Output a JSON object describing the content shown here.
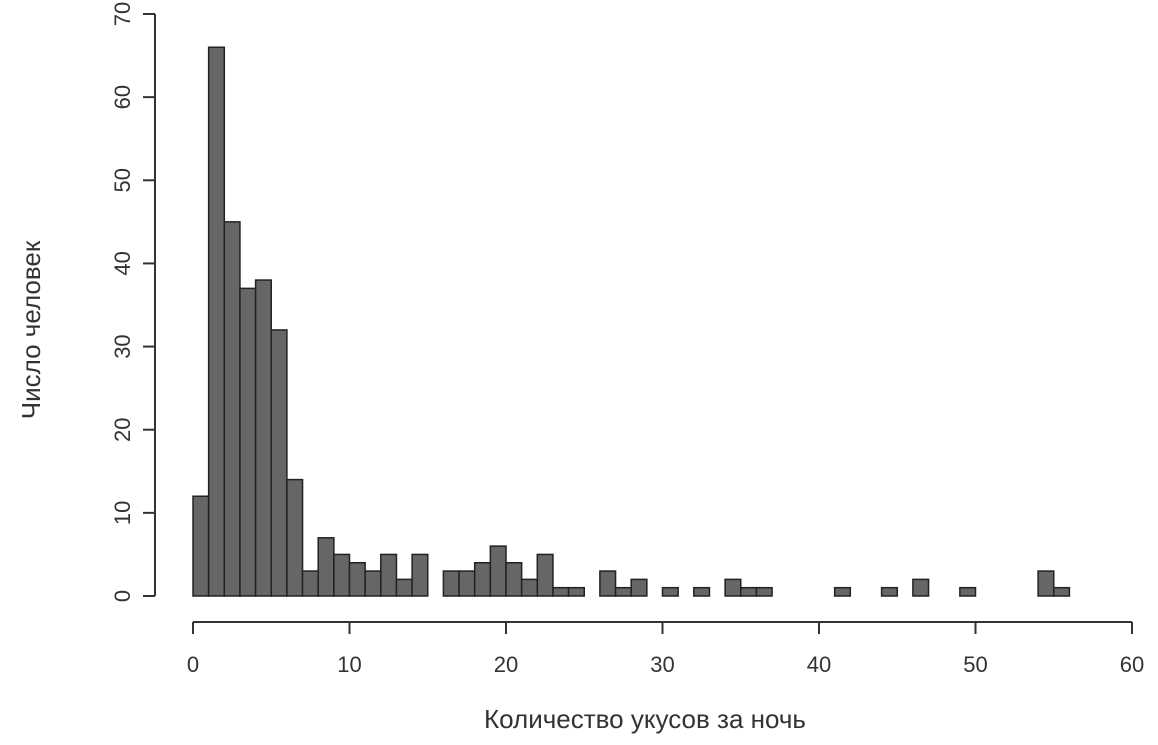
{
  "chart_data": {
    "type": "histogram",
    "xlabel": "Количество укусов за ночь",
    "ylabel": "Число человек",
    "bins": [
      0,
      1,
      2,
      3,
      4,
      5,
      6,
      7,
      8,
      9,
      10,
      11,
      12,
      13,
      14,
      15,
      16,
      17,
      18,
      19,
      20,
      21,
      22,
      23,
      24,
      25,
      26,
      27,
      28,
      29,
      30,
      31,
      32,
      33,
      34,
      35,
      36,
      37,
      38,
      39,
      40,
      41,
      42,
      43,
      44,
      45,
      46,
      47,
      48,
      49,
      50,
      51,
      52,
      53,
      54,
      55,
      56
    ],
    "counts": [
      12,
      66,
      45,
      37,
      38,
      32,
      14,
      3,
      7,
      5,
      4,
      3,
      5,
      2,
      5,
      0,
      3,
      3,
      4,
      6,
      4,
      2,
      5,
      1,
      1,
      0,
      3,
      1,
      2,
      0,
      1,
      0,
      1,
      0,
      2,
      1,
      1,
      0,
      0,
      0,
      0,
      1,
      0,
      0,
      1,
      0,
      2,
      0,
      0,
      1,
      0,
      0,
      0,
      0,
      3,
      1
    ],
    "color": "#666666",
    "xlim": [
      0,
      60
    ],
    "xticks": [
      0,
      10,
      20,
      30,
      40,
      50,
      60
    ],
    "ylim": [
      0,
      70
    ],
    "yticks": [
      0,
      10,
      20,
      30,
      40,
      50,
      60,
      70
    ]
  }
}
